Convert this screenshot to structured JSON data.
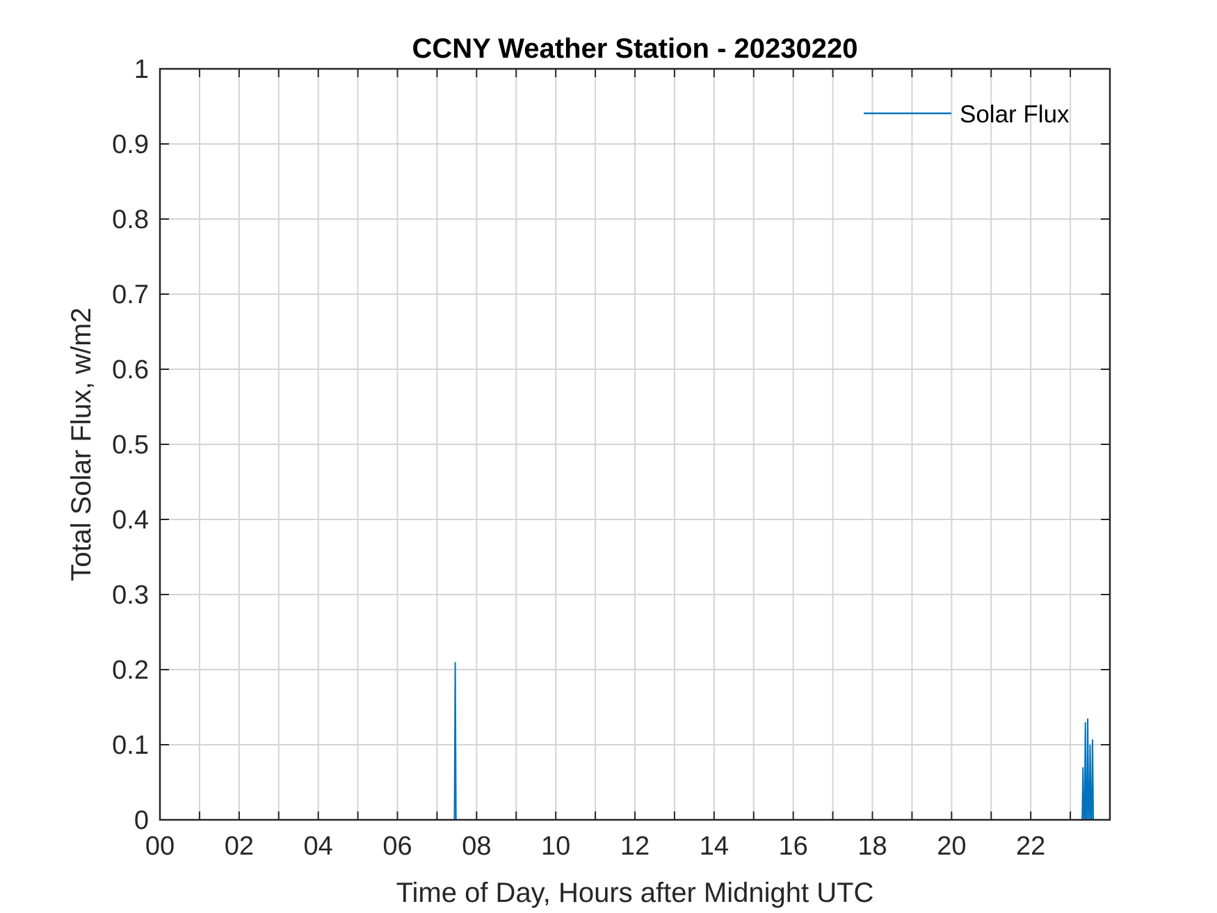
{
  "chart_data": {
    "type": "line",
    "title": "CCNY Weather Station - 20230220",
    "xlabel": "Time of Day, Hours after Midnight UTC",
    "ylabel": "Total Solar Flux, w/m2",
    "xlim": [
      0,
      24
    ],
    "ylim": [
      0,
      1
    ],
    "x_ticks": [
      0,
      2,
      4,
      6,
      8,
      10,
      12,
      14,
      16,
      18,
      20,
      22
    ],
    "x_tick_labels": [
      "00",
      "02",
      "04",
      "06",
      "08",
      "10",
      "12",
      "14",
      "16",
      "18",
      "20",
      "22"
    ],
    "x_minor_grid_step": 1,
    "y_ticks": [
      0,
      0.1,
      0.2,
      0.3,
      0.4,
      0.5,
      0.6,
      0.7,
      0.8,
      0.9,
      1
    ],
    "y_tick_labels": [
      "0",
      "0.1",
      "0.2",
      "0.3",
      "0.4",
      "0.5",
      "0.6",
      "0.7",
      "0.8",
      "0.9",
      "1"
    ],
    "grid": true,
    "legend": {
      "placement": "top-right",
      "entries": [
        "Solar Flux"
      ]
    },
    "series": [
      {
        "name": "Solar Flux",
        "color": "#0072BD",
        "points": [
          [
            7.44,
            0
          ],
          [
            7.46,
            0.21
          ],
          [
            7.48,
            0
          ],
          [
            23.3,
            0
          ],
          [
            23.32,
            0.07
          ],
          [
            23.34,
            0
          ],
          [
            23.36,
            0
          ],
          [
            23.38,
            0.13
          ],
          [
            23.4,
            0
          ],
          [
            23.42,
            0
          ],
          [
            23.44,
            0.135
          ],
          [
            23.46,
            0
          ],
          [
            23.48,
            0
          ],
          [
            23.5,
            0.1
          ],
          [
            23.52,
            0
          ],
          [
            23.54,
            0
          ],
          [
            23.56,
            0.107
          ],
          [
            23.58,
            0
          ]
        ]
      }
    ]
  }
}
